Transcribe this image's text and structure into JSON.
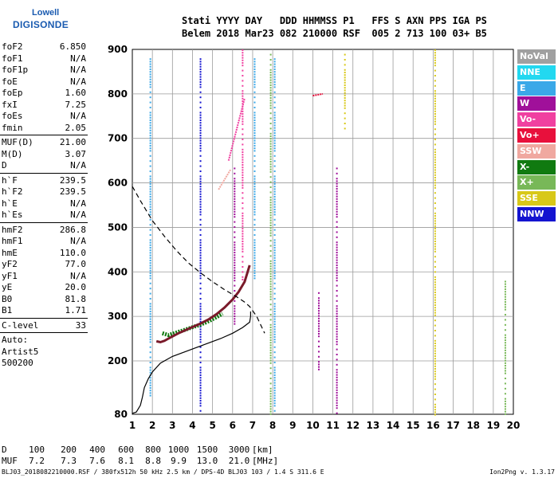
{
  "logo": {
    "line1": "Lowell",
    "line2": "DIGISONDE"
  },
  "header": {
    "line1": "Stati YYYY DAY   DDD HHMMSS P1   FFS S AXN PPS IGA PS",
    "line2": "Belem 2018 Mar23 082 210000 RSF  005 2 713 100 03+ B5"
  },
  "params": [
    {
      "group": [
        {
          "k": "foF2",
          "v": "6.850"
        },
        {
          "k": "foF1",
          "v": "N/A"
        },
        {
          "k": "foF1p",
          "v": "N/A"
        },
        {
          "k": "foE",
          "v": "N/A"
        },
        {
          "k": "foEp",
          "v": "1.60"
        },
        {
          "k": "fxI",
          "v": "7.25"
        },
        {
          "k": "foEs",
          "v": "N/A"
        },
        {
          "k": "fmin",
          "v": "2.05"
        }
      ]
    },
    {
      "group": [
        {
          "k": "MUF(D)",
          "v": "21.00"
        },
        {
          "k": "M(D)",
          "v": "3.07"
        },
        {
          "k": "D",
          "v": "N/A"
        }
      ]
    },
    {
      "group": [
        {
          "k": "h`F",
          "v": "239.5"
        },
        {
          "k": "h`F2",
          "v": "239.5"
        },
        {
          "k": "h`E",
          "v": "N/A"
        },
        {
          "k": "h`Es",
          "v": "N/A"
        }
      ]
    },
    {
      "group": [
        {
          "k": "hmF2",
          "v": "286.8"
        },
        {
          "k": "hmF1",
          "v": "N/A"
        },
        {
          "k": "hmE",
          "v": "110.0"
        },
        {
          "k": "yF2",
          "v": "77.0"
        },
        {
          "k": "yF1",
          "v": "N/A"
        },
        {
          "k": "yE",
          "v": "20.0"
        },
        {
          "k": "B0",
          "v": "81.8"
        },
        {
          "k": "B1",
          "v": "1.71"
        }
      ]
    },
    {
      "group": [
        {
          "k": "C-level",
          "v": "33"
        }
      ]
    }
  ],
  "auto": {
    "label": "Auto:",
    "artist": "Artist5",
    "code": "500200"
  },
  "legend": [
    {
      "label": "NoVal",
      "color": "#a0a0a0"
    },
    {
      "label": "NNE",
      "color": "#22d8f0"
    },
    {
      "label": "E",
      "color": "#3aa8e8"
    },
    {
      "label": "W",
      "color": "#a0109a"
    },
    {
      "label": "Vo-",
      "color": "#f040a0"
    },
    {
      "label": "Vo+",
      "color": "#e8103c"
    },
    {
      "label": "SSW",
      "color": "#f0a8a0"
    },
    {
      "label": "X-",
      "color": "#107a10"
    },
    {
      "label": "X+",
      "color": "#78b858"
    },
    {
      "label": "SSE",
      "color": "#d8c818"
    },
    {
      "label": "NNW",
      "color": "#1414d0"
    }
  ],
  "bottom": {
    "row1_label": "D",
    "distances": [
      "100",
      "200",
      "400",
      "600",
      "800",
      "1000",
      "1500",
      "3000"
    ],
    "row1_unit": "[km]",
    "row2_label": "MUF",
    "mufs": [
      "7.2",
      "7.3",
      "7.6",
      "8.1",
      "8.8",
      "9.9",
      "13.0",
      "21.0"
    ],
    "row2_unit": "[MHz]"
  },
  "footer": {
    "left": "BLJ03_2018082210000.RSF / 380fx512h 50 kHz 2.5 km / DPS-4D BLJ03 103 / 1.4 S 311.6 E",
    "right": "Ion2Png v. 1.3.17"
  },
  "chart_data": {
    "type": "scatter",
    "xlabel": "",
    "ylabel": "",
    "xlim": [
      1,
      20
    ],
    "ylim": [
      80,
      900
    ],
    "x_ticks": [
      1,
      2,
      3,
      4,
      5,
      6,
      7,
      8,
      9,
      10,
      11,
      12,
      13,
      14,
      15,
      16,
      17,
      18,
      19,
      20
    ],
    "y_ticks": [
      80,
      200,
      300,
      400,
      500,
      600,
      700,
      800,
      900
    ],
    "grid": true,
    "legend_position": "right",
    "trace_F2_O": {
      "name": "",
      "color": "#7a1a2a",
      "x": [
        2.2,
        2.4,
        2.6,
        2.8,
        3.0,
        3.3,
        3.6,
        4.0,
        4.4,
        4.8,
        5.2,
        5.6,
        6.0,
        6.3,
        6.6,
        6.85
      ],
      "y": [
        244,
        242,
        245,
        250,
        255,
        262,
        268,
        276,
        284,
        293,
        305,
        320,
        338,
        355,
        378,
        415
      ]
    },
    "trace_F2_X": {
      "name": "",
      "color": "#107a10",
      "x": [
        2.5,
        2.8,
        3.1,
        3.5,
        3.9,
        4.3,
        4.7,
        5.1,
        5.5
      ],
      "y": [
        262,
        258,
        262,
        268,
        274,
        280,
        287,
        296,
        306
      ]
    },
    "true_height_profile": {
      "name": "",
      "style": "solid",
      "x": [
        1.0,
        1.2,
        1.4,
        1.5,
        1.6,
        1.8,
        2.0,
        2.4,
        3.0,
        3.6,
        4.2,
        4.8,
        5.4,
        6.0,
        6.5,
        6.85,
        6.9,
        6.9
      ],
      "y": [
        82,
        85,
        100,
        118,
        140,
        160,
        175,
        195,
        210,
        220,
        230,
        240,
        250,
        262,
        275,
        287,
        300,
        311
      ]
    },
    "model_curve": {
      "name": "",
      "style": "dashed",
      "x": [
        1.0,
        1.4,
        2.0,
        2.6,
        3.2,
        3.8,
        4.4,
        5.0,
        5.6,
        6.2,
        6.6,
        6.85,
        7.2,
        7.6
      ],
      "y": [
        592,
        560,
        515,
        480,
        448,
        420,
        398,
        378,
        360,
        344,
        332,
        322,
        300,
        262
      ]
    },
    "echo_columns": [
      {
        "x": 1.9,
        "y": [
          120,
          880
        ],
        "legend_index": 2
      },
      {
        "x": 4.4,
        "y": [
          80,
          880
        ],
        "legend_index": 10
      },
      {
        "x": 6.1,
        "y": [
          280,
          640
        ],
        "legend_index": 3
      },
      {
        "x": 6.5,
        "y": [
          380,
          900
        ],
        "legend_index": 4
      },
      {
        "x": 7.1,
        "y": [
          380,
          880
        ],
        "legend_index": 2
      },
      {
        "x": 7.9,
        "y": [
          80,
          890
        ],
        "legend_index": 8
      },
      {
        "x": 8.1,
        "y": [
          80,
          880
        ],
        "legend_index": 2
      },
      {
        "x": 10.3,
        "y": [
          180,
          360
        ],
        "legend_index": 3
      },
      {
        "x": 11.2,
        "y": [
          80,
          640
        ],
        "legend_index": 3
      },
      {
        "x": 11.6,
        "y": [
          720,
          890
        ],
        "legend_index": 9
      },
      {
        "x": 16.1,
        "y": [
          80,
          900
        ],
        "legend_index": 9
      },
      {
        "x": 19.6,
        "y": [
          80,
          380
        ],
        "legend_index": 8
      }
    ],
    "echo_segments": [
      {
        "x": [
          10.0,
          10.5
        ],
        "y": [
          796,
          800
        ],
        "legend_index": 5
      },
      {
        "x": [
          5.3,
          5.9
        ],
        "y": [
          585,
          630
        ],
        "legend_index": 6
      },
      {
        "x": [
          5.8,
          6.6
        ],
        "y": [
          650,
          790
        ],
        "legend_index": 4
      }
    ]
  }
}
